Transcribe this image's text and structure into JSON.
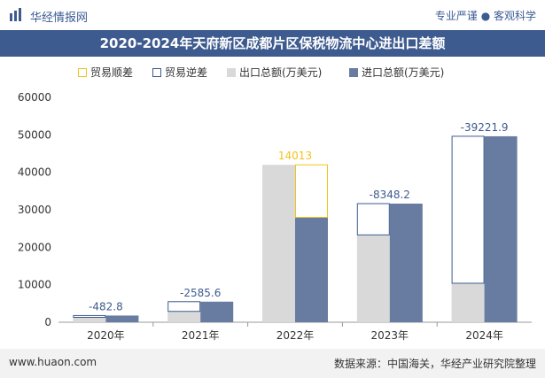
{
  "header": {
    "brand": "华经情报网",
    "tagline": "专业严谨 ● 客观科学",
    "title": "2020-2024年天府新区成都片区保税物流中心进出口差额"
  },
  "footer": {
    "website": "www.huaon.com",
    "source": "数据来源：中国海关，华经产业研究院整理"
  },
  "colors": {
    "export": "#d9d9d9",
    "import": "#687ba0",
    "surplus": "#f0c419",
    "deficit": "#3e5b8f",
    "header": "#3e5b8f"
  },
  "chart_data": {
    "type": "bar",
    "categories": [
      "2020年",
      "2021年",
      "2022年",
      "2023年",
      "2024年"
    ],
    "series": [
      {
        "name": "出口总额(万美元)",
        "values": [
          1300,
          2900,
          42000,
          23300,
          10400
        ]
      },
      {
        "name": "进口总额(万美元)",
        "values": [
          1782.8,
          5485.6,
          27987,
          31648.2,
          49621.9
        ]
      }
    ],
    "balance": {
      "values": [
        -482.8,
        -2585.6,
        14013,
        -8348.2,
        -39221.9
      ],
      "labels": [
        "-482.8",
        "-2585.6",
        "14013",
        "-8348.2",
        "-39221.9"
      ],
      "surplus_name": "贸易顺差",
      "deficit_name": "贸易逆差"
    },
    "ylim": [
      0,
      60000
    ],
    "yticks": [
      0,
      10000,
      20000,
      30000,
      40000,
      50000,
      60000
    ],
    "ytick_labels": [
      "0",
      "10000",
      "20000",
      "30000",
      "40000",
      "50000",
      "60000"
    ],
    "legend_position": "top-center",
    "grid": false
  }
}
